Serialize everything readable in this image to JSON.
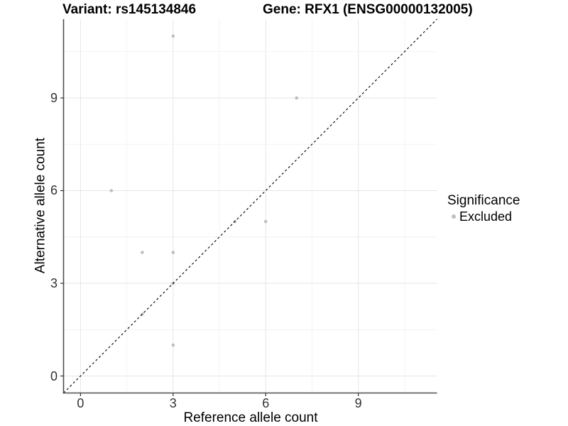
{
  "title": {
    "variant": "Variant: rs145134846",
    "gene": "Gene: RFX1 (ENSG00000132005)"
  },
  "legend": {
    "title": "Significance",
    "items": [
      {
        "label": "Excluded",
        "marker_color": "#BFBFBF"
      }
    ]
  },
  "chart_data": {
    "type": "scatter",
    "title": "Variant: rs145134846 / Gene: RFX1 (ENSG00000132005)",
    "xlabel": "Reference allele count",
    "ylabel": "Alternative allele count",
    "xlim": [
      -0.55,
      11.55
    ],
    "ylim": [
      -0.55,
      11.55
    ],
    "x_ticks": [
      0,
      3,
      6,
      9
    ],
    "y_ticks": [
      0,
      3,
      6,
      9
    ],
    "x_minor_ticks": [
      1.5,
      4.5,
      7.5,
      10.5
    ],
    "y_minor_ticks": [
      1.5,
      4.5,
      7.5,
      10.5
    ],
    "grid": "major and minor gridlines, white background",
    "legend_position": "right-center",
    "series": [
      {
        "name": "Excluded",
        "marker": "circle",
        "color": "#BFBFBF",
        "points": [
          [
            3,
            11
          ],
          [
            7,
            9
          ],
          [
            1,
            6
          ],
          [
            5,
            5
          ],
          [
            6,
            5
          ],
          [
            2,
            4
          ],
          [
            3,
            4
          ],
          [
            3,
            3
          ],
          [
            2,
            2
          ],
          [
            3,
            1
          ]
        ]
      }
    ],
    "reference_line": {
      "kind": "identity y=x",
      "style": "dashed",
      "color": "#000000",
      "from": [
        -0.55,
        -0.55
      ],
      "to": [
        11.55,
        11.55
      ]
    }
  },
  "style": {
    "point_color": "#BFBFBF",
    "point_radius": 2.3,
    "legend_dot_color": "#BFBFBF",
    "grid_major_color": "#E6E6E6",
    "grid_minor_color": "#F2F2F2",
    "axis_line_color": "#4D4D4D",
    "tick_mark_color": "#333333",
    "dashed_line_color": "#000000",
    "background": "#FFFFFF"
  }
}
